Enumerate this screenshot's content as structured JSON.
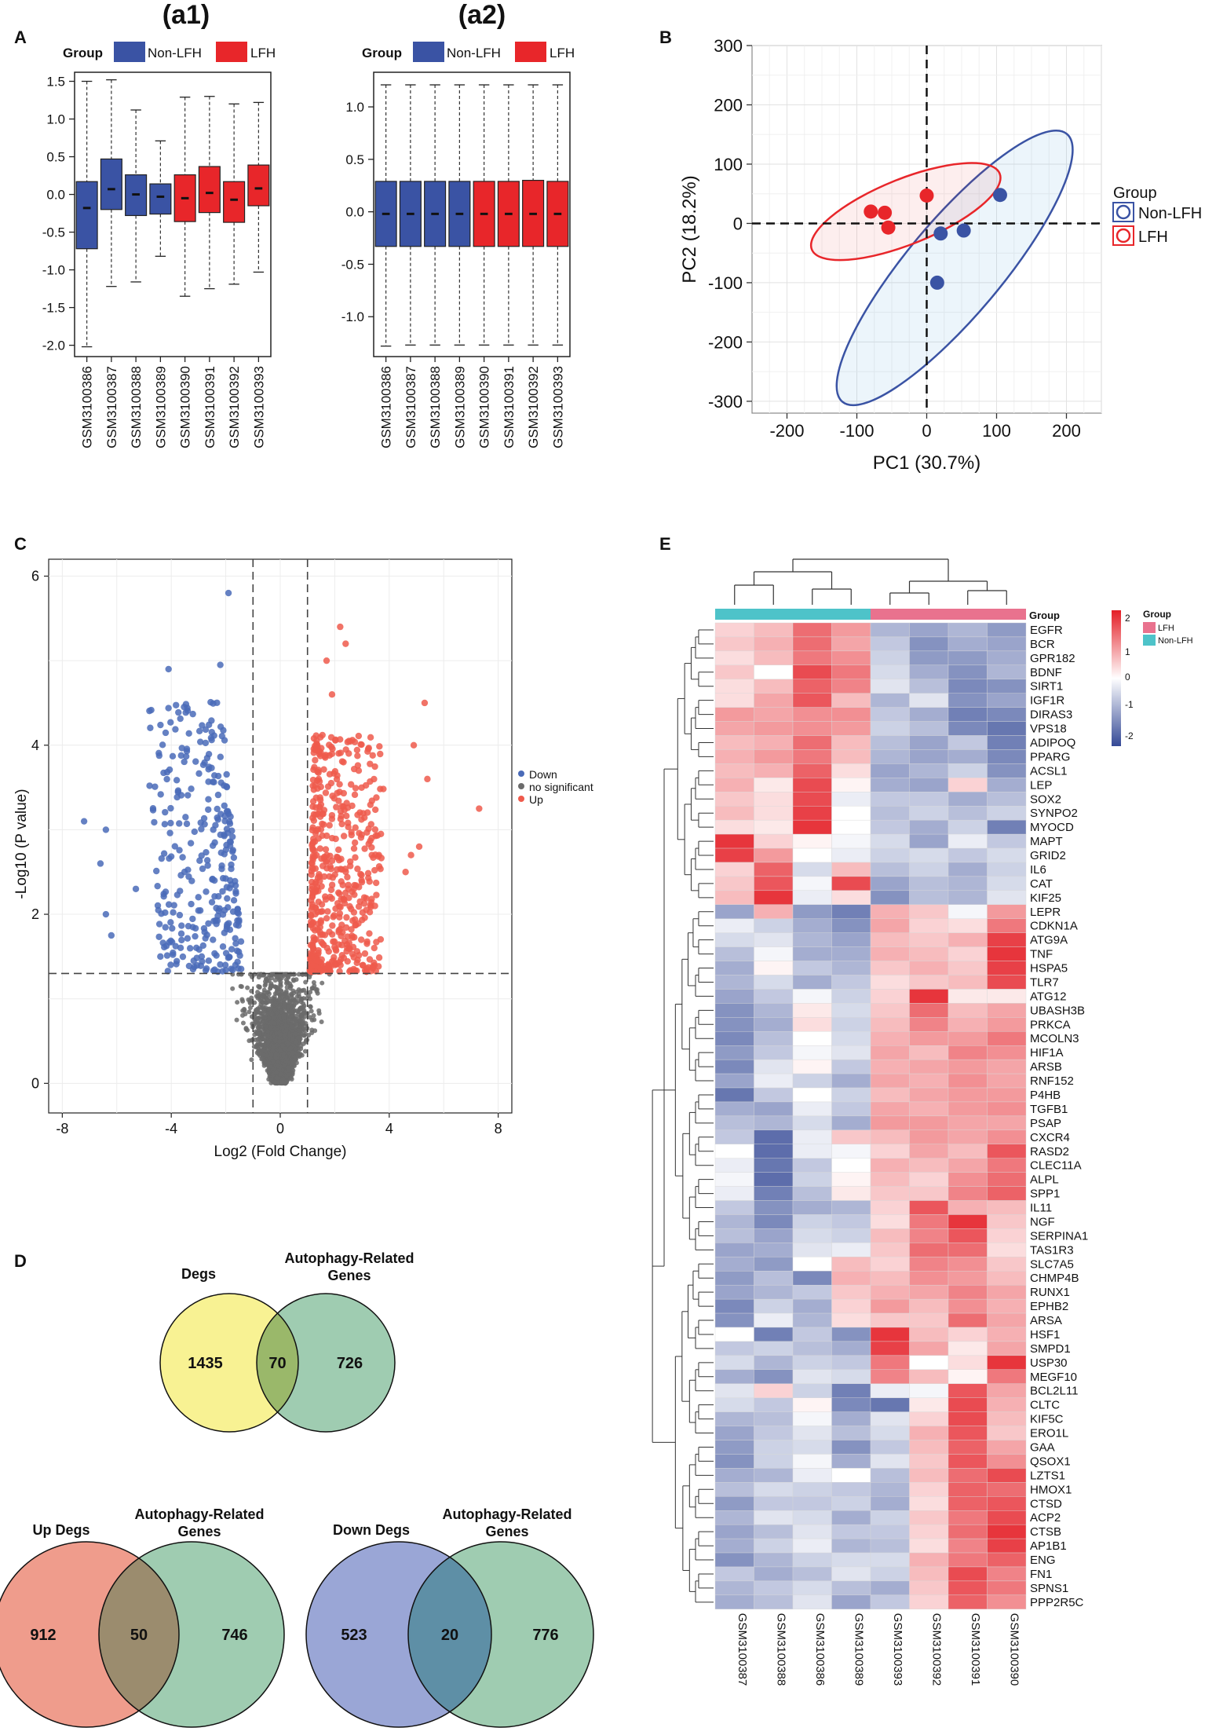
{
  "panel_labels": {
    "A": "A",
    "B": "B",
    "C": "C",
    "D": "D",
    "E": "E"
  },
  "chart_data": [
    {
      "id": "a1",
      "type": "box",
      "title": "(a1)",
      "legend_title": "Group",
      "legend": [
        "Non-LFH",
        "LFH"
      ],
      "categories": [
        "GSM3100386",
        "GSM3100387",
        "GSM3100388",
        "GSM3100389",
        "GSM3100390",
        "GSM3100391",
        "GSM3100392",
        "GSM3100393"
      ],
      "groups": [
        "Non-LFH",
        "Non-LFH",
        "Non-LFH",
        "Non-LFH",
        "LFH",
        "LFH",
        "LFH",
        "LFH"
      ],
      "boxes": [
        {
          "lo": -2.02,
          "q1": -0.72,
          "med": -0.18,
          "q3": 0.17,
          "hi": 1.5
        },
        {
          "lo": -1.22,
          "q1": -0.2,
          "med": 0.07,
          "q3": 0.47,
          "hi": 1.52
        },
        {
          "lo": -1.16,
          "q1": -0.28,
          "med": 0.0,
          "q3": 0.26,
          "hi": 1.12
        },
        {
          "lo": -0.82,
          "q1": -0.26,
          "med": -0.03,
          "q3": 0.14,
          "hi": 0.71
        },
        {
          "lo": -1.35,
          "q1": -0.36,
          "med": -0.05,
          "q3": 0.26,
          "hi": 1.29
        },
        {
          "lo": -1.25,
          "q1": -0.24,
          "med": 0.02,
          "q3": 0.37,
          "hi": 1.3
        },
        {
          "lo": -1.19,
          "q1": -0.37,
          "med": -0.07,
          "q3": 0.17,
          "hi": 1.2
        },
        {
          "lo": -1.03,
          "q1": -0.15,
          "med": 0.08,
          "q3": 0.39,
          "hi": 1.22
        }
      ],
      "ylim": [
        -2.15,
        1.62
      ],
      "yticks": [
        "1.5",
        "1.0",
        "0.5",
        "0.0",
        "-0.5",
        "-1.0",
        "-1.5",
        "-2.0"
      ]
    },
    {
      "id": "a2",
      "type": "box",
      "title": "(a2)",
      "legend_title": "Group",
      "legend": [
        "Non-LFH",
        "LFH"
      ],
      "categories": [
        "GSM3100386",
        "GSM3100387",
        "GSM3100388",
        "GSM3100389",
        "GSM3100390",
        "GSM3100391",
        "GSM3100392",
        "GSM3100393"
      ],
      "groups": [
        "Non-LFH",
        "Non-LFH",
        "Non-LFH",
        "Non-LFH",
        "LFH",
        "LFH",
        "LFH",
        "LFH"
      ],
      "boxes": [
        {
          "lo": -1.28,
          "q1": -0.33,
          "med": -0.02,
          "q3": 0.29,
          "hi": 1.21
        },
        {
          "lo": -1.27,
          "q1": -0.33,
          "med": -0.02,
          "q3": 0.29,
          "hi": 1.21
        },
        {
          "lo": -1.27,
          "q1": -0.33,
          "med": -0.02,
          "q3": 0.29,
          "hi": 1.21
        },
        {
          "lo": -1.27,
          "q1": -0.33,
          "med": -0.02,
          "q3": 0.29,
          "hi": 1.21
        },
        {
          "lo": -1.27,
          "q1": -0.33,
          "med": -0.02,
          "q3": 0.29,
          "hi": 1.21
        },
        {
          "lo": -1.27,
          "q1": -0.33,
          "med": -0.02,
          "q3": 0.29,
          "hi": 1.21
        },
        {
          "lo": -1.27,
          "q1": -0.33,
          "med": -0.02,
          "q3": 0.3,
          "hi": 1.21
        },
        {
          "lo": -1.27,
          "q1": -0.33,
          "med": -0.02,
          "q3": 0.29,
          "hi": 1.21
        }
      ],
      "ylim": [
        -1.38,
        1.33
      ],
      "yticks": [
        "1.0",
        "0.5",
        "0.0",
        "-0.5",
        "-1.0"
      ]
    },
    {
      "id": "B",
      "type": "scatter",
      "xlabel": "PC1 (30.7%)",
      "ylabel": "PC2 (18.2%)",
      "xlim": [
        -250,
        250
      ],
      "ylim": [
        -320,
        300
      ],
      "xticks": [
        "-200",
        "-100",
        "0",
        "100",
        "200"
      ],
      "yticks": [
        "300",
        "200",
        "100",
        "0",
        "-100",
        "-200",
        "-300"
      ],
      "legend_title": "Group",
      "legend": [
        "Non-LFH",
        "LFH"
      ],
      "series": [
        {
          "name": "Non-LFH",
          "points": [
            [
              105,
              48
            ],
            [
              20,
              -17
            ],
            [
              53,
              -12
            ],
            [
              15,
              -100
            ]
          ]
        },
        {
          "name": "LFH",
          "points": [
            [
              -80,
              20
            ],
            [
              -60,
              18
            ],
            [
              -55,
              -7
            ],
            [
              0,
              47
            ]
          ]
        }
      ],
      "ellipses": [
        {
          "group": "Non-LFH",
          "cx": 40,
          "cy": -75,
          "rx": 250,
          "ry": 80,
          "angle": 50
        },
        {
          "group": "LFH",
          "cx": -30,
          "cy": 20,
          "rx": 145,
          "ry": 55,
          "angle": 22
        }
      ]
    },
    {
      "id": "C",
      "type": "scatter",
      "xlabel": "Log2 (Fold Change)",
      "ylabel": "-Log10 (P value)",
      "xlim": [
        -8.5,
        8.5
      ],
      "ylim": [
        -0.35,
        6.2
      ],
      "xticks": [
        "-8",
        "-4",
        "0",
        "4",
        "8"
      ],
      "yticks": [
        "6",
        "4",
        "2",
        "0"
      ],
      "thresholds": {
        "logfc": 1,
        "p_value_line": 1.3
      },
      "legend": [
        "Down",
        "no significant",
        "Up"
      ],
      "down_highlights": [
        [
          -1.9,
          5.8
        ],
        [
          -4.1,
          4.9
        ],
        [
          -2.2,
          4.95
        ],
        [
          -7.2,
          3.1
        ],
        [
          -6.4,
          3.0
        ],
        [
          -6.6,
          2.6
        ],
        [
          -5.3,
          2.3
        ],
        [
          -6.4,
          2.0
        ],
        [
          -6.2,
          1.75
        ],
        [
          -4.4,
          1.5
        ],
        [
          -3.2,
          1.35
        ]
      ],
      "up_highlights": [
        [
          2.2,
          5.4
        ],
        [
          2.4,
          5.2
        ],
        [
          1.7,
          5.0
        ],
        [
          5.3,
          4.5
        ],
        [
          4.9,
          4.0
        ],
        [
          7.3,
          3.25
        ],
        [
          5.4,
          3.6
        ],
        [
          5.1,
          2.8
        ],
        [
          4.8,
          2.7
        ],
        [
          4.6,
          2.5
        ],
        [
          1.9,
          4.6
        ]
      ]
    },
    {
      "id": "D",
      "type": "venn",
      "venns": [
        {
          "left_label": "Degs",
          "right_label": [
            "Autophagy-Related",
            "Genes"
          ],
          "left": "1435",
          "overlap": "70",
          "right": "726"
        },
        {
          "left_label": "Up Degs",
          "right_label": [
            "Autophagy-Related",
            "Genes"
          ],
          "left": "912",
          "overlap": "50",
          "right": "746"
        },
        {
          "left_label": "Down Degs",
          "right_label": [
            "Autophagy-Related",
            "Genes"
          ],
          "left": "523",
          "overlap": "20",
          "right": "776"
        }
      ]
    },
    {
      "id": "E",
      "type": "heatmap",
      "group_header": "Group",
      "legend_title": "Group",
      "legend_groups": [
        "LFH",
        "Non-LFH"
      ],
      "color_scale": [
        "2",
        "1",
        "0",
        "-1",
        "-2"
      ],
      "columns": [
        "GSM3100387",
        "GSM3100388",
        "GSM3100386",
        "GSM3100389",
        "GSM3100393",
        "GSM3100392",
        "GSM3100391",
        "GSM3100390"
      ],
      "column_groups": [
        "Non-LFH",
        "Non-LFH",
        "Non-LFH",
        "Non-LFH",
        "LFH",
        "LFH",
        "LFH",
        "LFH"
      ],
      "rows": [
        "EGFR",
        "BCR",
        "GPR182",
        "BDNF",
        "SIRT1",
        "IGF1R",
        "DIRAS3",
        "VPS18",
        "ADIPOQ",
        "PPARG",
        "ACSL1",
        "LEP",
        "SOX2",
        "SYNPO2",
        "MYOCD",
        "MAPT",
        "GRID2",
        "IL6",
        "CAT",
        "KIF25",
        "LEPR",
        "CDKN1A",
        "ATG9A",
        "TNF",
        "HSPA5",
        "TLR7",
        "ATG12",
        "UBASH3B",
        "PRKCA",
        "MCOLN3",
        "HIF1A",
        "ARSB",
        "RNF152",
        "P4HB",
        "TGFB1",
        "PSAP",
        "CXCR4",
        "RASD2",
        "CLEC11A",
        "ALPL",
        "SPP1",
        "IL11",
        "NGF",
        "SERPINA1",
        "TAS1R3",
        "SLC7A5",
        "CHMP4B",
        "RUNX1",
        "EPHB2",
        "ARSA",
        "HSF1",
        "SMPD1",
        "USP30",
        "MEGF10",
        "BCL2L11",
        "CLTC",
        "KIF5C",
        "ERO1L",
        "GAA",
        "QSOX1",
        "LZTS1",
        "HMOX1",
        "CTSD",
        "ACP2",
        "CTSB",
        "AP1B1",
        "ENG",
        "FN1",
        "SPNS1",
        "PPP2R5C"
      ],
      "values": [
        [
          0.4,
          0.6,
          1.3,
          0.9,
          -0.8,
          -1.0,
          -0.8,
          -1.1
        ],
        [
          0.5,
          0.7,
          1.3,
          0.8,
          -0.6,
          -1.2,
          -0.9,
          -1.0
        ],
        [
          0.3,
          0.6,
          1.2,
          1.0,
          -0.5,
          -1.1,
          -1.1,
          -0.9
        ],
        [
          0.5,
          0.0,
          1.6,
          1.2,
          -0.4,
          -0.9,
          -1.2,
          -0.8
        ],
        [
          0.3,
          0.6,
          1.4,
          1.1,
          -0.3,
          -0.7,
          -1.3,
          -1.2
        ],
        [
          0.3,
          0.8,
          1.5,
          0.6,
          -0.8,
          -0.3,
          -1.2,
          -1.0
        ],
        [
          0.9,
          0.8,
          1.0,
          1.0,
          -0.6,
          -0.9,
          -1.4,
          -1.3
        ],
        [
          0.8,
          0.9,
          1.0,
          0.9,
          -0.5,
          -0.7,
          -1.3,
          -1.5
        ],
        [
          0.6,
          0.7,
          1.3,
          0.6,
          -0.7,
          -1.0,
          -0.6,
          -1.4
        ],
        [
          0.7,
          0.9,
          1.2,
          0.6,
          -0.8,
          -1.0,
          -0.9,
          -1.3
        ],
        [
          0.6,
          0.7,
          1.4,
          0.3,
          -1.0,
          -0.8,
          -0.5,
          -1.2
        ],
        [
          0.7,
          0.2,
          1.6,
          0.1,
          -0.9,
          -1.0,
          0.4,
          -0.9
        ],
        [
          0.5,
          0.3,
          1.6,
          -0.2,
          -0.6,
          -0.6,
          -0.9,
          -0.7
        ],
        [
          0.6,
          0.3,
          1.7,
          0.0,
          -0.7,
          -0.5,
          -0.7,
          -0.5
        ],
        [
          0.3,
          0.2,
          1.8,
          0.0,
          -0.6,
          -0.9,
          -0.5,
          -1.4
        ],
        [
          1.8,
          0.4,
          0.1,
          -0.1,
          -0.4,
          -1.0,
          -0.2,
          -0.6
        ],
        [
          1.7,
          0.9,
          0.0,
          -0.2,
          -0.5,
          -0.4,
          -0.6,
          -0.4
        ],
        [
          0.4,
          1.4,
          -0.4,
          0.6,
          -0.7,
          -0.5,
          -0.9,
          -0.5
        ],
        [
          0.5,
          1.5,
          -0.1,
          1.6,
          -1.0,
          -0.7,
          -0.8,
          -0.4
        ],
        [
          0.6,
          1.8,
          -0.2,
          0.3,
          -1.2,
          -0.7,
          -0.8,
          -0.3
        ],
        [
          -1.0,
          0.7,
          -1.1,
          -1.4,
          0.7,
          0.5,
          -0.1,
          0.9
        ],
        [
          -0.2,
          -0.5,
          -0.9,
          -1.2,
          0.8,
          0.4,
          0.3,
          1.2
        ],
        [
          -0.4,
          -0.3,
          -0.8,
          -1.0,
          0.6,
          0.5,
          0.7,
          1.7
        ],
        [
          -0.7,
          -0.1,
          -0.9,
          -0.9,
          0.7,
          0.6,
          0.4,
          1.8
        ],
        [
          -0.9,
          0.1,
          -0.6,
          -0.8,
          0.5,
          0.7,
          0.5,
          1.7
        ],
        [
          -0.8,
          -0.4,
          -0.9,
          -0.6,
          0.3,
          0.5,
          0.6,
          1.6
        ],
        [
          -1.0,
          -0.6,
          -0.1,
          -0.5,
          0.4,
          1.8,
          0.2,
          0.2
        ],
        [
          -1.2,
          -0.8,
          0.2,
          -0.4,
          0.5,
          1.3,
          0.6,
          0.8
        ],
        [
          -1.2,
          -0.9,
          0.3,
          -0.5,
          0.6,
          1.1,
          0.7,
          0.9
        ],
        [
          -1.3,
          -0.7,
          0.0,
          -0.4,
          0.7,
          0.9,
          0.9,
          1.2
        ],
        [
          -1.1,
          -0.6,
          -0.1,
          -0.3,
          0.8,
          0.6,
          1.1,
          1.0
        ],
        [
          -1.3,
          -0.3,
          0.1,
          -0.6,
          0.7,
          0.8,
          0.9,
          0.8
        ],
        [
          -1.0,
          -0.2,
          -0.5,
          -0.9,
          0.8,
          0.7,
          1.0,
          0.8
        ],
        [
          -1.5,
          -0.6,
          0.0,
          -0.5,
          0.6,
          0.8,
          0.9,
          0.9
        ],
        [
          -0.9,
          -1.0,
          -0.2,
          -0.6,
          0.8,
          0.7,
          0.9,
          1.0
        ],
        [
          -0.7,
          -0.8,
          -0.4,
          -0.9,
          0.9,
          0.9,
          0.8,
          0.8
        ],
        [
          -0.6,
          -1.6,
          -0.2,
          0.5,
          0.6,
          0.9,
          0.8,
          1.0
        ],
        [
          0.0,
          -1.6,
          -0.2,
          -0.1,
          0.4,
          0.8,
          0.6,
          1.5
        ],
        [
          -0.2,
          -1.5,
          -0.6,
          0.0,
          0.7,
          0.6,
          0.8,
          1.2
        ],
        [
          -0.1,
          -1.6,
          -0.5,
          0.1,
          0.6,
          0.4,
          1.0,
          1.3
        ],
        [
          -0.2,
          -1.4,
          -0.7,
          0.2,
          0.5,
          0.5,
          1.1,
          1.4
        ],
        [
          -0.6,
          -1.2,
          -0.9,
          -0.8,
          0.4,
          1.5,
          0.7,
          0.6
        ],
        [
          -0.8,
          -1.3,
          -0.5,
          -0.6,
          0.3,
          1.2,
          1.8,
          0.5
        ],
        [
          -0.7,
          -1.0,
          -0.4,
          -0.5,
          0.6,
          1.1,
          1.5,
          0.4
        ],
        [
          -1.0,
          -0.9,
          -0.3,
          -0.2,
          0.5,
          1.3,
          1.3,
          0.3
        ],
        [
          -0.9,
          -1.1,
          0.0,
          0.6,
          0.4,
          1.1,
          1.0,
          0.5
        ],
        [
          -1.1,
          -0.7,
          -1.3,
          0.7,
          0.6,
          1.0,
          0.9,
          0.6
        ],
        [
          -1.0,
          -0.8,
          -0.6,
          0.5,
          0.7,
          0.8,
          1.1,
          0.8
        ],
        [
          -1.3,
          -0.5,
          -0.9,
          0.4,
          0.9,
          0.6,
          1.0,
          0.7
        ],
        [
          -1.2,
          -0.2,
          -0.8,
          0.3,
          0.5,
          0.5,
          1.3,
          0.8
        ],
        [
          0.0,
          -1.4,
          -0.6,
          -1.2,
          1.8,
          0.6,
          0.4,
          0.7
        ],
        [
          -0.6,
          -0.5,
          -0.7,
          -0.9,
          1.7,
          0.8,
          0.2,
          0.8
        ],
        [
          -0.4,
          -0.8,
          -0.5,
          -0.6,
          1.2,
          0.0,
          0.3,
          1.8
        ],
        [
          -0.9,
          -1.2,
          -0.3,
          -0.4,
          1.1,
          0.6,
          0.1,
          1.2
        ],
        [
          -0.3,
          0.4,
          -0.5,
          -1.4,
          -0.2,
          -0.1,
          1.5,
          0.8
        ],
        [
          -0.4,
          -0.6,
          0.1,
          -1.3,
          -1.5,
          0.2,
          1.6,
          0.7
        ],
        [
          -0.8,
          -0.7,
          -0.1,
          -0.9,
          -0.3,
          0.4,
          1.6,
          0.6
        ],
        [
          -1.0,
          -0.6,
          -0.3,
          -0.7,
          -0.4,
          0.7,
          1.5,
          0.5
        ],
        [
          -1.1,
          -0.5,
          -0.4,
          -1.2,
          -0.6,
          0.6,
          1.4,
          0.8
        ],
        [
          -1.2,
          -0.5,
          -0.1,
          -0.9,
          -0.3,
          0.5,
          1.5,
          1.0
        ],
        [
          -0.9,
          -0.8,
          -0.2,
          0.0,
          -0.7,
          0.6,
          1.3,
          1.6
        ],
        [
          -0.7,
          -0.4,
          -0.5,
          -0.6,
          -0.8,
          0.4,
          1.4,
          1.3
        ],
        [
          -1.1,
          -0.6,
          -0.6,
          -0.5,
          -0.9,
          0.3,
          1.4,
          1.5
        ],
        [
          -0.8,
          -0.3,
          -0.4,
          -0.9,
          -0.5,
          0.5,
          1.2,
          1.6
        ],
        [
          -1.0,
          -0.7,
          -0.3,
          -0.6,
          -0.6,
          0.4,
          1.3,
          1.8
        ],
        [
          -0.9,
          -0.5,
          -0.2,
          -0.8,
          -0.7,
          0.3,
          1.1,
          1.7
        ],
        [
          -1.2,
          -0.8,
          -0.5,
          -0.4,
          -0.4,
          0.7,
          1.2,
          1.4
        ],
        [
          -0.6,
          -0.9,
          -0.7,
          -0.3,
          -0.5,
          0.6,
          1.6,
          1.1
        ],
        [
          -0.8,
          -0.6,
          -0.4,
          -0.7,
          -0.9,
          0.5,
          1.5,
          1.2
        ],
        [
          -0.9,
          -0.7,
          -0.3,
          -1.0,
          -0.6,
          0.4,
          1.4,
          1.0
        ]
      ]
    }
  ]
}
